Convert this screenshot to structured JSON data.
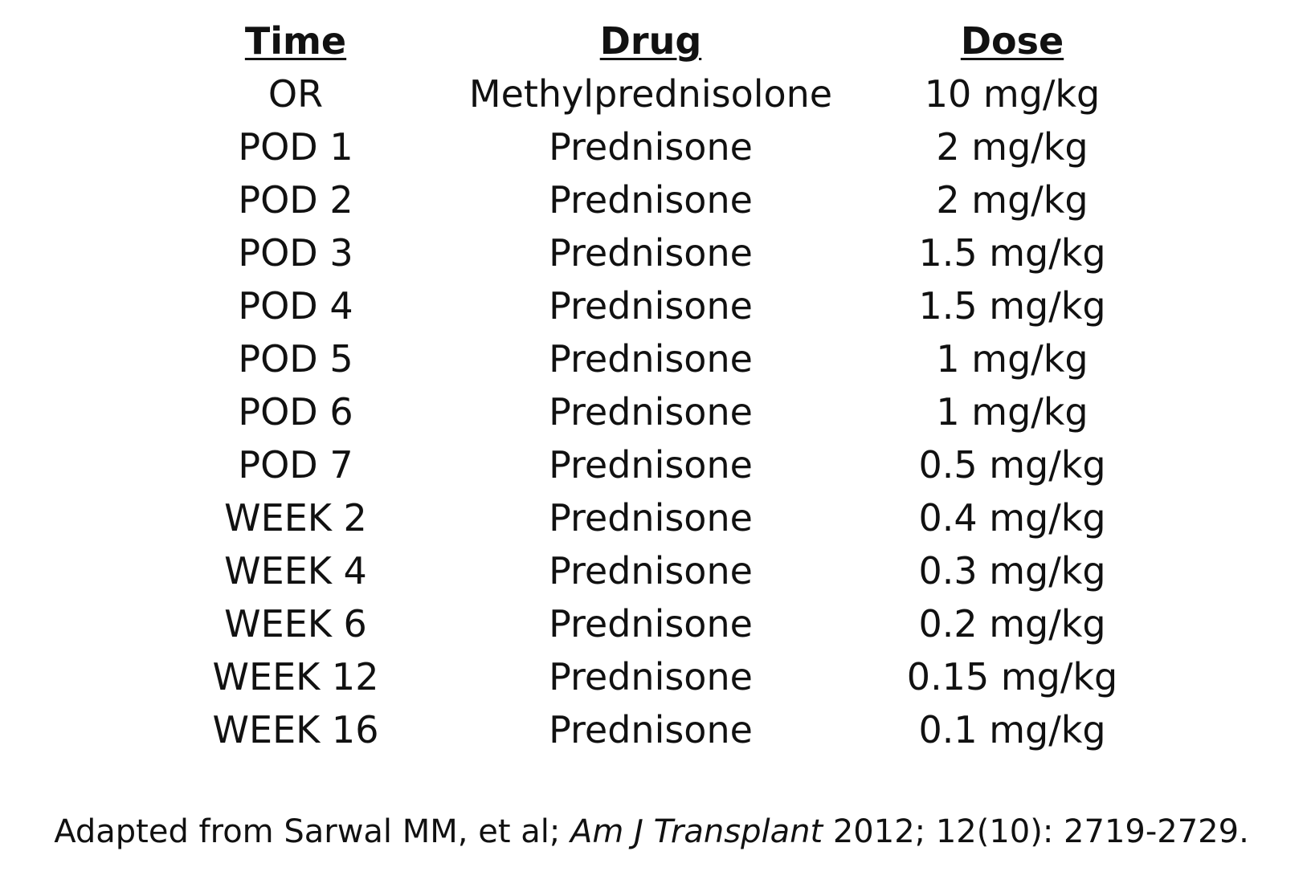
{
  "table": {
    "headers": {
      "time": "Time",
      "drug": "Drug",
      "dose": "Dose"
    },
    "rows": [
      {
        "time": "OR",
        "drug": "Methylprednisolone",
        "dose": "10 mg/kg"
      },
      {
        "time": "POD 1",
        "drug": "Prednisone",
        "dose": "2 mg/kg"
      },
      {
        "time": "POD 2",
        "drug": "Prednisone",
        "dose": "2 mg/kg"
      },
      {
        "time": "POD 3",
        "drug": "Prednisone",
        "dose": "1.5 mg/kg"
      },
      {
        "time": "POD 4",
        "drug": "Prednisone",
        "dose": "1.5 mg/kg"
      },
      {
        "time": "POD 5",
        "drug": "Prednisone",
        "dose": "1 mg/kg"
      },
      {
        "time": "POD 6",
        "drug": "Prednisone",
        "dose": "1 mg/kg"
      },
      {
        "time": "POD 7",
        "drug": "Prednisone",
        "dose": "0.5 mg/kg"
      },
      {
        "time": "WEEK 2",
        "drug": "Prednisone",
        "dose": "0.4 mg/kg"
      },
      {
        "time": "WEEK 4",
        "drug": "Prednisone",
        "dose": "0.3 mg/kg"
      },
      {
        "time": "WEEK 6",
        "drug": "Prednisone",
        "dose": "0.2 mg/kg"
      },
      {
        "time": "WEEK 12",
        "drug": "Prednisone",
        "dose": "0.15 mg/kg"
      },
      {
        "time": "WEEK 16",
        "drug": "Prednisone",
        "dose": "0.1 mg/kg"
      }
    ]
  },
  "citation": {
    "prefix": "Adapted from Sarwal MM, et al; ",
    "journal": "Am J Transplant",
    "suffix": " 2012; 12(10): 2719-2729."
  }
}
